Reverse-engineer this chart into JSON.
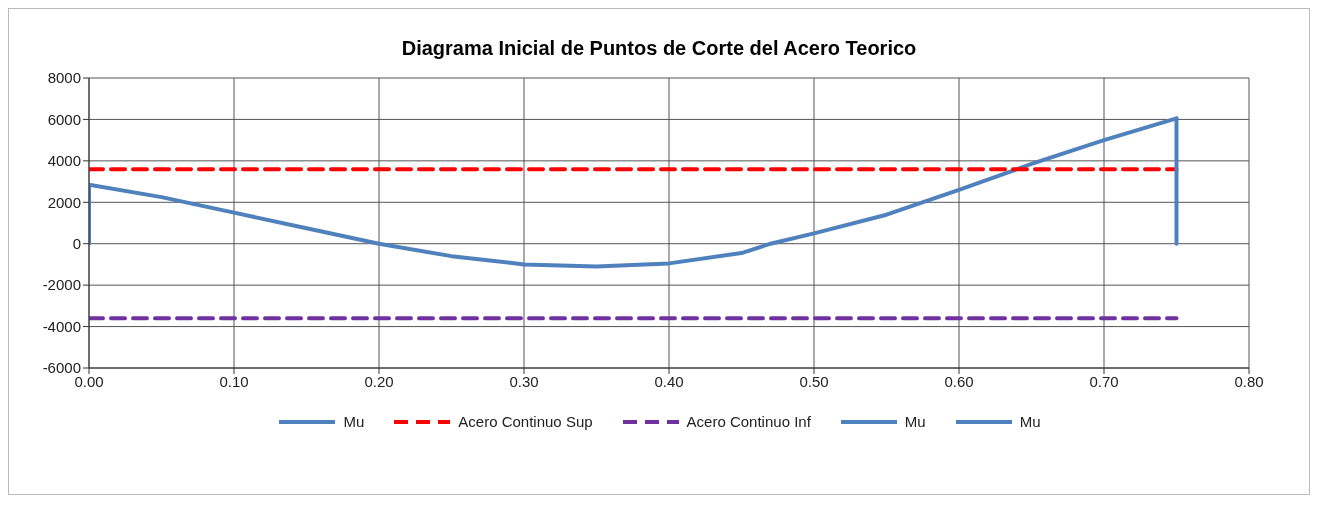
{
  "chart_data": {
    "type": "line",
    "title": "Diagrama Inicial de Puntos de Corte del Acero Teorico",
    "xlim": [
      0,
      0.8
    ],
    "xticks": [
      {
        "value": 0,
        "label": "0.00"
      },
      {
        "value": 0.1,
        "label": "0.10"
      },
      {
        "value": 0.2,
        "label": "0.20"
      },
      {
        "value": 0.3,
        "label": "0.30"
      },
      {
        "value": 0.4,
        "label": "0.40"
      },
      {
        "value": 0.5,
        "label": "0.50"
      },
      {
        "value": 0.6,
        "label": "0.60"
      },
      {
        "value": 0.7,
        "label": "0.70"
      },
      {
        "value": 0.8,
        "label": "0.80"
      }
    ],
    "ylim": [
      -6000,
      8000
    ],
    "yticks": [
      -6000,
      -4000,
      -2000,
      0,
      2000,
      4000,
      6000,
      8000
    ],
    "grid": true,
    "legend": "bottom",
    "marker": "none",
    "series": [
      {
        "name": "Mu",
        "color": "#4f81bd",
        "line_style": "solid",
        "x": [
          0,
          0.05,
          0.1,
          0.15,
          0.2,
          0.25,
          0.3,
          0.35,
          0.4,
          0.45,
          0.47,
          0.5,
          0.55,
          0.6,
          0.65,
          0.7,
          0.75
        ],
        "values": [
          2850,
          2250,
          1500,
          750,
          0,
          -600,
          -1000,
          -1100,
          -950,
          -450,
          0,
          500,
          1400,
          2600,
          3850,
          5000,
          6050
        ]
      },
      {
        "name": "Acero Continuo Sup",
        "color": "#ff0000",
        "line_style": "dashed",
        "x": [
          0,
          0.75
        ],
        "values": [
          3600,
          3600
        ]
      },
      {
        "name": "Acero Continuo Inf",
        "color": "#7030a0",
        "line_style": "dashed",
        "x": [
          0,
          0.75
        ],
        "values": [
          -3600,
          -3600
        ]
      },
      {
        "name": "Mu",
        "color": "#4f81bd",
        "line_style": "solid",
        "x": [
          0,
          0
        ],
        "values": [
          0,
          2850
        ]
      },
      {
        "name": "Mu",
        "color": "#4f81bd",
        "line_style": "solid",
        "x": [
          0.75,
          0.75
        ],
        "values": [
          0,
          6050
        ]
      }
    ]
  }
}
